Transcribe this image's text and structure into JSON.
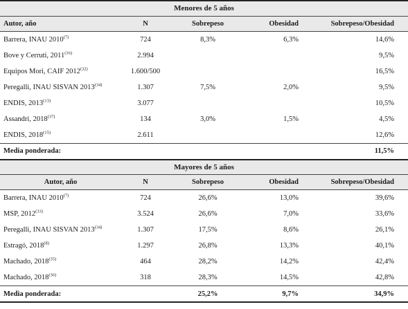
{
  "section_under5": {
    "title": "Menores de 5 años",
    "headers": [
      "Autor, año",
      "N",
      "Sobrepeso",
      "Obesidad",
      "Sobrepeso/Obesidad"
    ],
    "rows": [
      {
        "author": "Barrera, INAU 2010",
        "ref": "(7)",
        "n": "724",
        "sobrepeso": "8,3%",
        "obesidad": "6,3%",
        "sobrepeso_obesidad": "14,6%"
      },
      {
        "author": "Bove y Cerruti, 2011",
        "ref": "(16)",
        "n": "2.994",
        "sobrepeso": "",
        "obesidad": "",
        "sobrepeso_obesidad": "9,5%"
      },
      {
        "author": "Equipos Mori, CAIF 2012",
        "ref": "(32)",
        "n": "1.600/500",
        "sobrepeso": "",
        "obesidad": "",
        "sobrepeso_obesidad": "16,5%"
      },
      {
        "author": "Peregalli, INAU SISVAN 2013",
        "ref": "(34)",
        "n": "1.307",
        "sobrepeso": "7,5%",
        "obesidad": "2,0%",
        "sobrepeso_obesidad": "9,5%"
      },
      {
        "author": "ENDIS, 2013",
        "ref": "(13)",
        "n": "3.077",
        "sobrepeso": "",
        "obesidad": "",
        "sobrepeso_obesidad": "10,5%"
      },
      {
        "author": "Assandri, 2018",
        "ref": "(37)",
        "n": "134",
        "sobrepeso": "3,0%",
        "obesidad": "1,5%",
        "sobrepeso_obesidad": "4,5%"
      },
      {
        "author": "ENDIS, 2018",
        "ref": "(15)",
        "n": "2.611",
        "sobrepeso": "",
        "obesidad": "",
        "sobrepeso_obesidad": "12,6%"
      }
    ],
    "mean": {
      "label": "Media ponderada:",
      "sobrepeso": "",
      "obesidad": "",
      "sobrepeso_obesidad": "11,5%"
    }
  },
  "section_over5": {
    "title": "Mayores de 5 años",
    "headers": [
      "Autor, año",
      "N",
      "Sobrepeso",
      "Obesidad",
      "Sobrepeso/Obesidad"
    ],
    "rows": [
      {
        "author": "Barrera, INAU 2010",
        "ref": "(7)",
        "n": "724",
        "sobrepeso": "26,6%",
        "obesidad": "13,0%",
        "sobrepeso_obesidad": "39,6%"
      },
      {
        "author": "MSP, 2012",
        "ref": "(33)",
        "n": "3.524",
        "sobrepeso": "26,6%",
        "obesidad": "7,0%",
        "sobrepeso_obesidad": "33,6%"
      },
      {
        "author": "Peregalli, INAU SISVAN 2013",
        "ref": "(34)",
        "n": "1.307",
        "sobrepeso": "17,5%",
        "obesidad": "8,6%",
        "sobrepeso_obesidad": "26,1%"
      },
      {
        "author": "Estragó, 2018",
        "ref": "(8)",
        "n": "1.297",
        "sobrepeso": "26,8%",
        "obesidad": "13,3%",
        "sobrepeso_obesidad": "40,1%"
      },
      {
        "author": "Machado, 2018",
        "ref": "(35)",
        "n": "464",
        "sobrepeso": "28,2%",
        "obesidad": "14,2%",
        "sobrepeso_obesidad": "42,4%"
      },
      {
        "author": "Machado, 2018",
        "ref": "(36)",
        "n": "318",
        "sobrepeso": "28,3%",
        "obesidad": "14,5%",
        "sobrepeso_obesidad": "42,8%"
      }
    ],
    "mean": {
      "label": "Media ponderada:",
      "sobrepeso": "25,2%",
      "obesidad": "9,7%",
      "sobrepeso_obesidad": "34,9%"
    }
  }
}
